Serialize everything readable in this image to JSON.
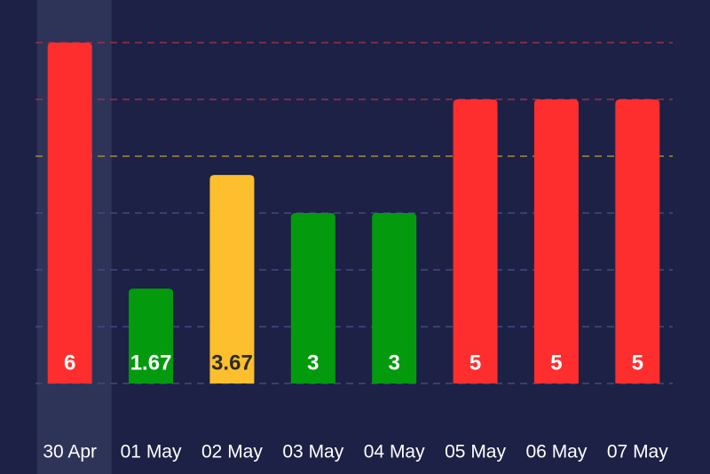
{
  "chart_data": {
    "type": "bar",
    "title": "",
    "xlabel": "",
    "ylabel": "",
    "categories": [
      "30 Apr",
      "01 May",
      "02 May",
      "03 May",
      "04 May",
      "05 May",
      "06 May",
      "07 May"
    ],
    "values": [
      6,
      1.67,
      3.67,
      3,
      3,
      5,
      5,
      5
    ],
    "value_labels": [
      "6",
      "1.67",
      "3.67",
      "3",
      "3",
      "5",
      "5",
      "5"
    ],
    "bar_colors": [
      "#ff2e2e",
      "#049a0e",
      "#fdbf2d",
      "#049a0e",
      "#049a0e",
      "#ff2e2e",
      "#ff2e2e",
      "#ff2e2e"
    ],
    "value_label_colors": [
      "#ffffff",
      "#ffffff",
      "#2b2b2b",
      "#ffffff",
      "#ffffff",
      "#ffffff",
      "#ffffff",
      "#ffffff"
    ],
    "ylim": [
      0,
      6
    ],
    "reference_lines": [
      {
        "value": 1,
        "color": "#3f4a82"
      },
      {
        "value": 2,
        "color": "#3f4a82"
      },
      {
        "value": 3,
        "color": "#3f4a82"
      },
      {
        "value": 4,
        "color": "#a8893a"
      },
      {
        "value": 5,
        "color": "#9a2f4a"
      },
      {
        "value": 6,
        "color": "#9a2f4a"
      }
    ],
    "highlighted_category": "30 Apr",
    "highlight_color": "#2e3358",
    "grid": true,
    "legend": "none",
    "background": "#1d2145"
  }
}
